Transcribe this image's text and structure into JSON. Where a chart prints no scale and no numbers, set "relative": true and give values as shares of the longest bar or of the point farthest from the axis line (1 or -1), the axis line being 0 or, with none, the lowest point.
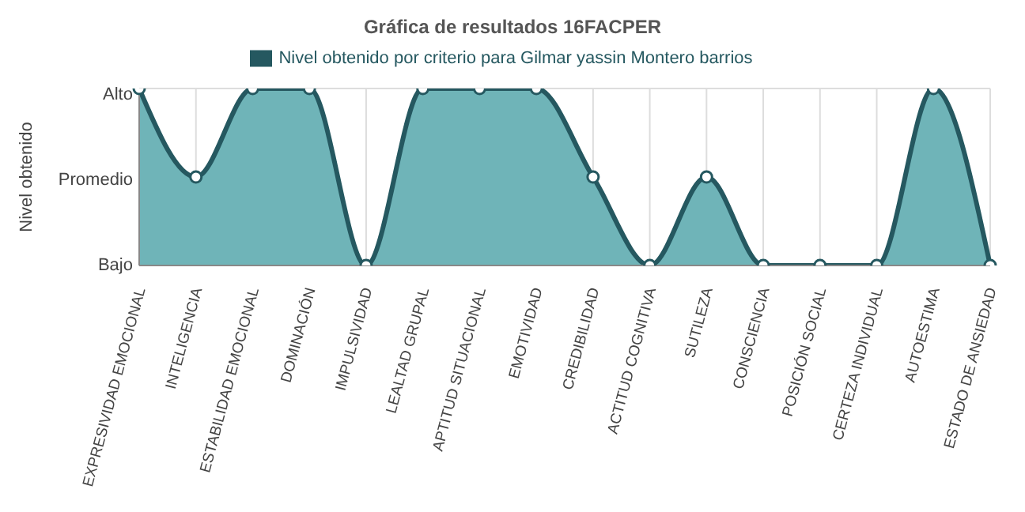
{
  "chart_data": {
    "type": "area",
    "title": "Gráfica de resultados 16FACPER",
    "ylabel": "Nivel obtenido",
    "categories": [
      "EXPRESIVIDAD EMOCIONAL",
      "INTELIGENCIA",
      "ESTABILIDAD EMOCIONAL",
      "DOMINACIÓN",
      "IMPULSIVIDAD",
      "LEALTAD GRUPAL",
      "APTITUD SITUACIONAL",
      "EMOTIVIDAD",
      "CREDIBILIDAD",
      "ACTITUD COGNITIVA",
      "SUTILEZA",
      "CONSCIENCIA",
      "POSICIÓN SOCIAL",
      "CERTEZA INDIVIDUAL",
      "AUTOESTIMA",
      "ESTADO DE ANSIEDAD"
    ],
    "series": [
      {
        "name": "Nivel obtenido por criterio para Gilmar yassin Montero barrios",
        "color": "#6fb4b8",
        "values": [
          1,
          0.5,
          1,
          1,
          0,
          1,
          1,
          1,
          0.5,
          0,
          0.5,
          0,
          0,
          0,
          1,
          0
        ]
      }
    ],
    "relative": true,
    "annotations": [
      "Bajo",
      "Promedio",
      "Alto"
    ],
    "grid": true,
    "legend": "top",
    "marker": "circle"
  }
}
